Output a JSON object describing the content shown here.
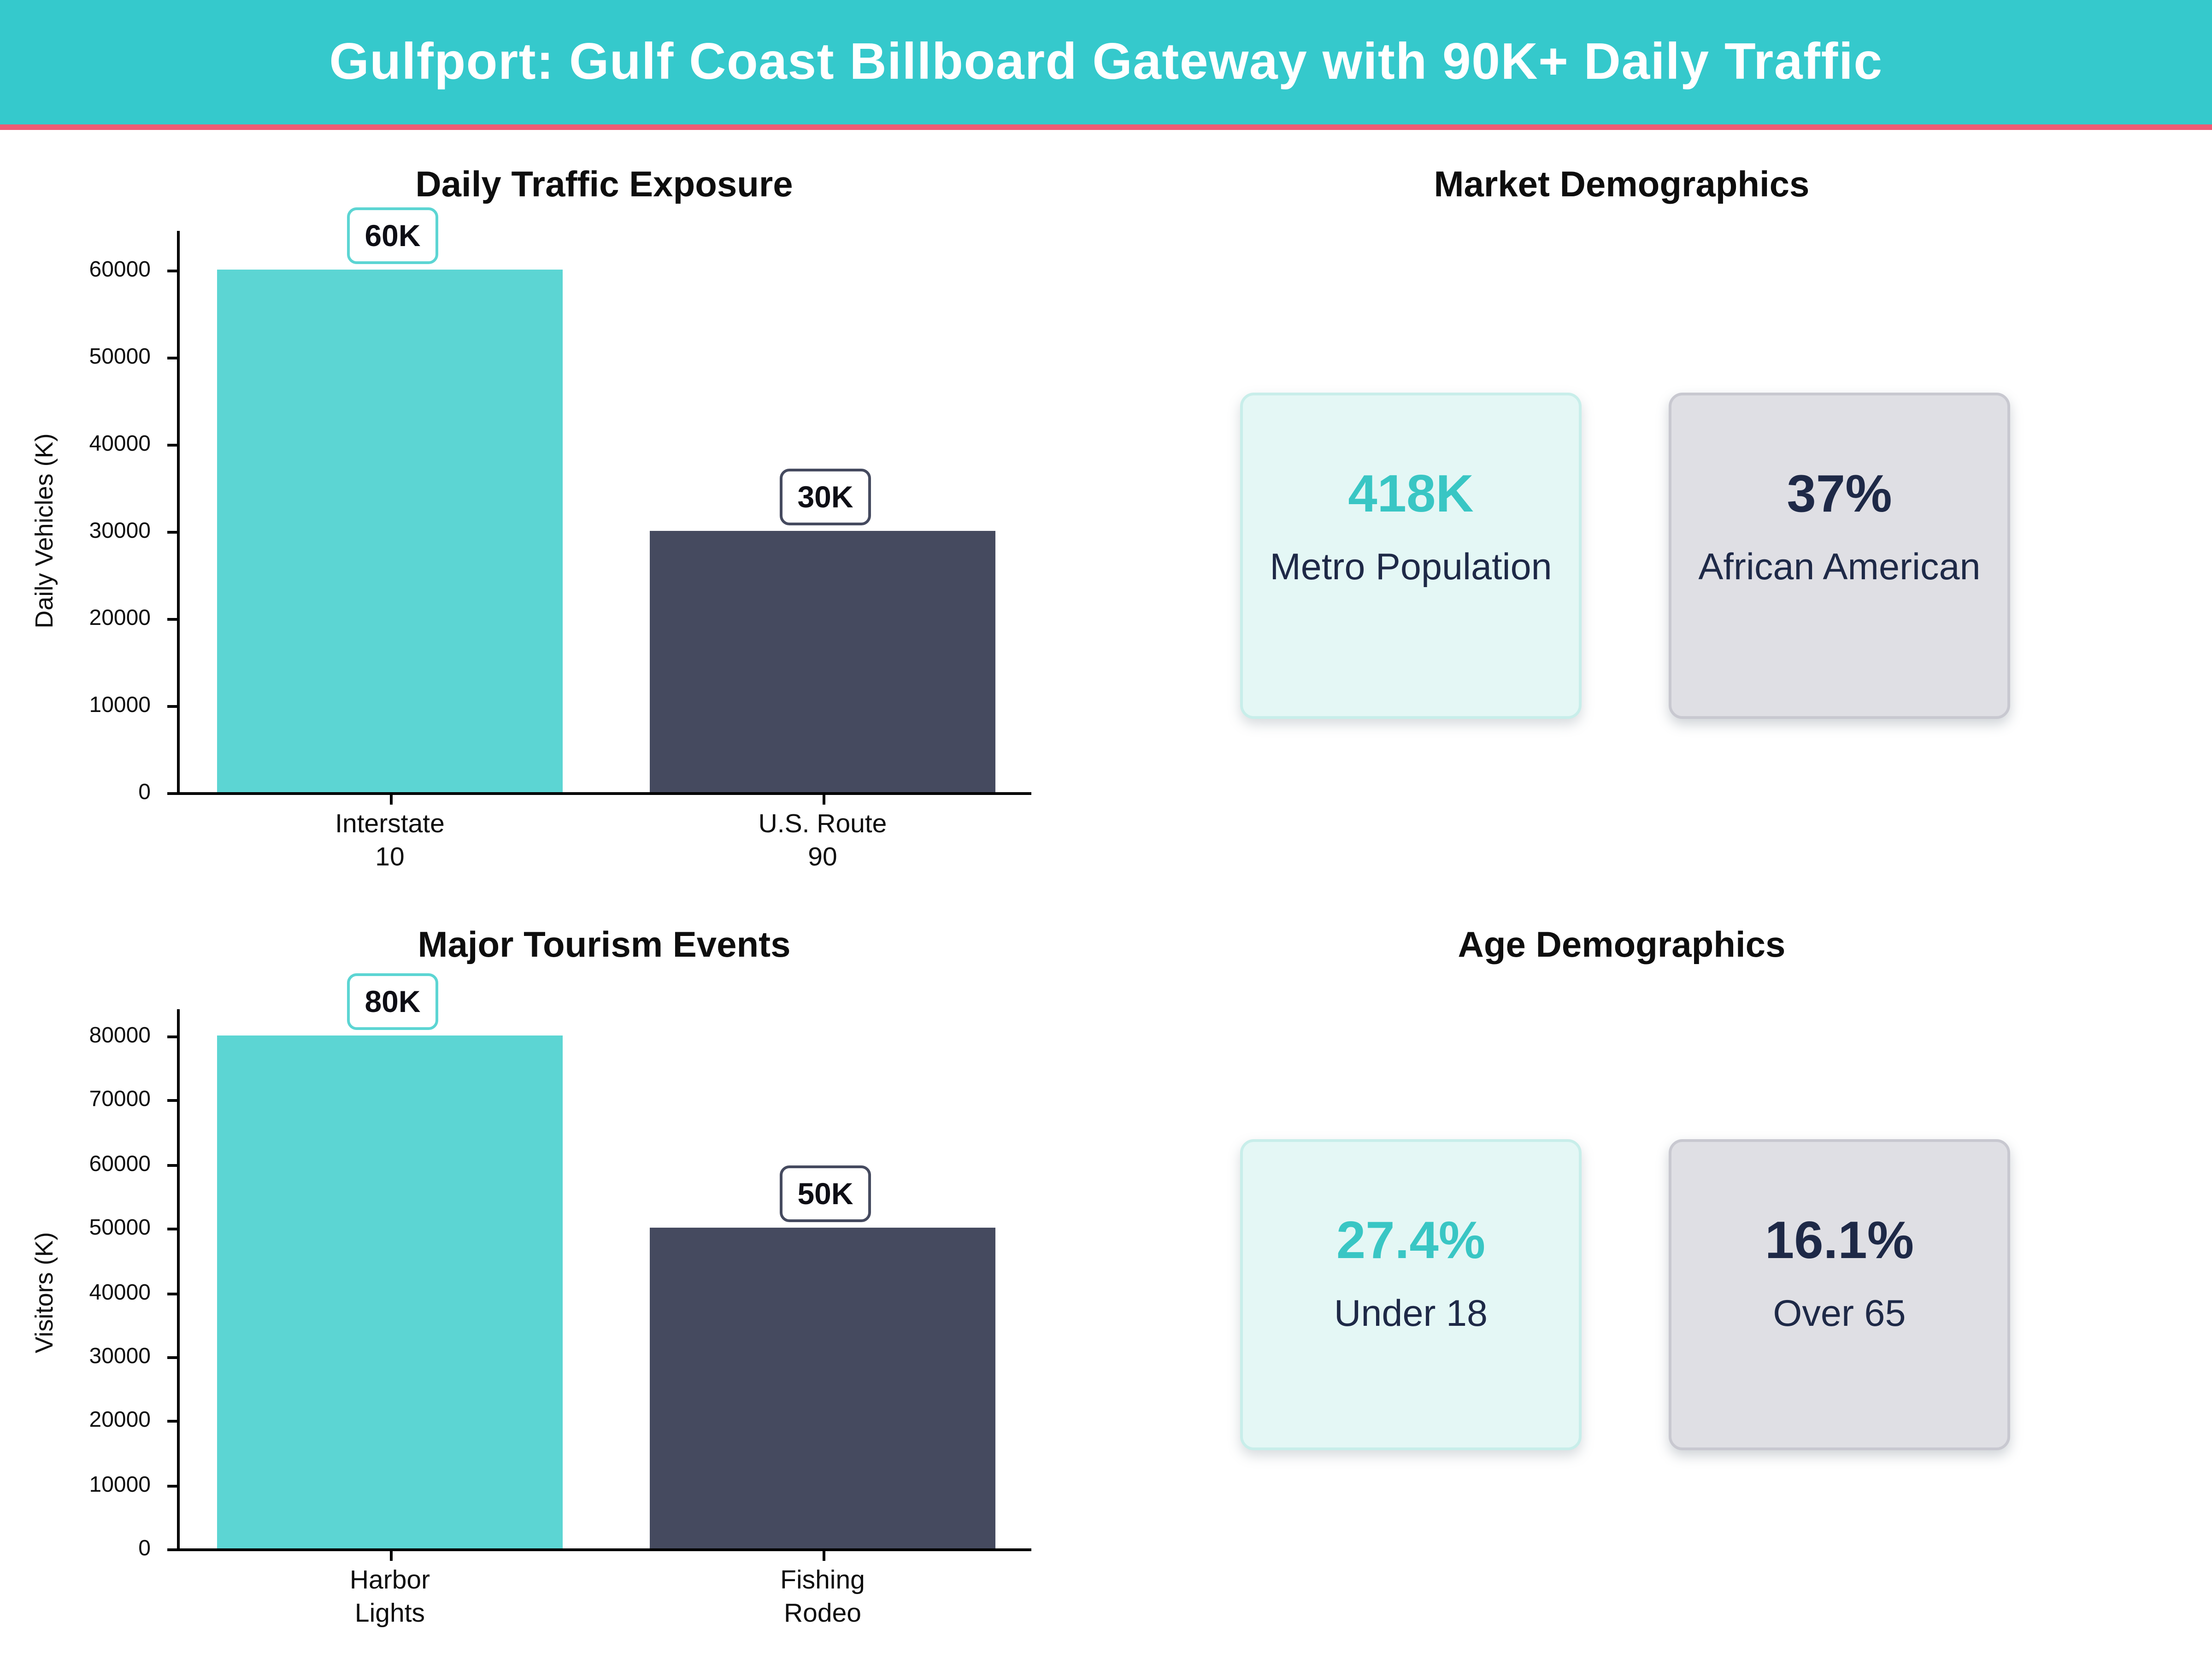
{
  "header": {
    "title": "Gulfport: Gulf Coast Billboard Gateway with 90K+ Daily Traffic"
  },
  "colors": {
    "header_background": "#35c9cc",
    "header_divider": "#ee5b74",
    "bar_teal": "#5cd5d3",
    "bar_slate": "#454a5f",
    "card_mint_bg": "#e4f7f5",
    "card_mint_border": "#c8eeea",
    "card_gray_bg": "#dfdfe4",
    "card_gray_border": "#c8c8d0",
    "value_teal": "#39c6c4",
    "value_navy": "#1e2947"
  },
  "chart_data": [
    {
      "type": "bar",
      "title": "Daily Traffic Exposure",
      "xlabel": "",
      "ylabel": "Daily Vehicles (K)",
      "categories": [
        "Interstate\n10",
        "U.S. Route\n90"
      ],
      "values": [
        60000,
        30000
      ],
      "bar_labels": [
        "60K",
        "30K"
      ],
      "bar_colors": [
        "#5cd5d3",
        "#454a5f"
      ],
      "yticks": [
        0,
        10000,
        20000,
        30000,
        40000,
        50000,
        60000
      ],
      "ylim": [
        0,
        60000
      ],
      "grid": false,
      "legend": null
    },
    {
      "type": "bar",
      "title": "Major Tourism Events",
      "xlabel": "",
      "ylabel": "Visitors (K)",
      "categories": [
        "Harbor\nLights",
        "Fishing\nRodeo"
      ],
      "values": [
        80000,
        50000
      ],
      "bar_labels": [
        "80K",
        "50K"
      ],
      "bar_colors": [
        "#5cd5d3",
        "#454a5f"
      ],
      "yticks": [
        0,
        10000,
        20000,
        30000,
        40000,
        50000,
        60000,
        70000,
        80000
      ],
      "ylim": [
        0,
        80000
      ],
      "grid": false,
      "legend": null
    }
  ],
  "sections": {
    "market": {
      "title": "Market Demographics",
      "cards": [
        {
          "value": "418K",
          "label": "Metro Population"
        },
        {
          "value": "37%",
          "label": "African American"
        }
      ]
    },
    "age": {
      "title": "Age Demographics",
      "cards": [
        {
          "value": "27.4%",
          "label": "Under 18"
        },
        {
          "value": "16.1%",
          "label": "Over 65"
        }
      ]
    }
  }
}
